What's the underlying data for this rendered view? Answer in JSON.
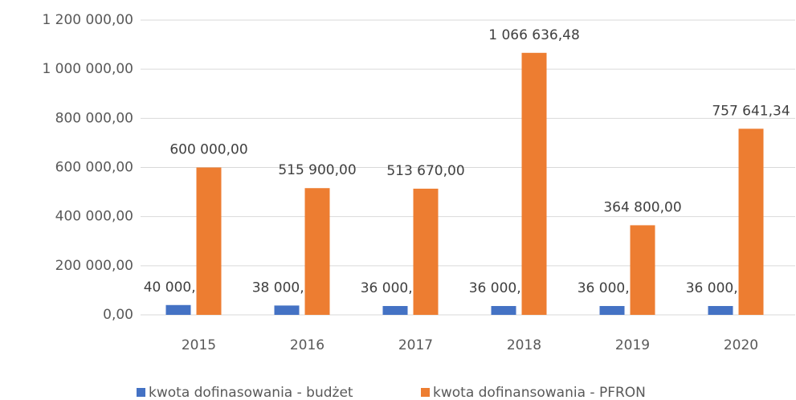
{
  "chart_data": {
    "type": "bar",
    "categories": [
      "2015",
      "2016",
      "2017",
      "2018",
      "2019",
      "2020"
    ],
    "series": [
      {
        "name": "kwota dofinasowania - budżet",
        "color": "#4472c4",
        "values": [
          40000,
          38000,
          36000,
          36000,
          36000,
          36000
        ],
        "value_labels": [
          "40 000,00",
          "38 000,00",
          "36 000,00",
          "36 000,00",
          "36 000,00",
          "36 000,00"
        ]
      },
      {
        "name": "kwota dofinansowania - PFRON",
        "color": "#ed7d31",
        "values": [
          600000,
          515900,
          513670,
          1066636.48,
          364800,
          757641.34
        ],
        "value_labels": [
          "600 000,00",
          "515 900,00",
          "513 670,00",
          "1 066 636,48",
          "364 800,00",
          "757 641,34"
        ]
      }
    ],
    "ylim": [
      0,
      1200000
    ],
    "yticks": [
      {
        "value": 0,
        "label": "0,00"
      },
      {
        "value": 200000,
        "label": "200 000,00"
      },
      {
        "value": 400000,
        "label": "400 000,00"
      },
      {
        "value": 600000,
        "label": "600 000,00"
      },
      {
        "value": 800000,
        "label": "800 000,00"
      },
      {
        "value": 1000000,
        "label": "1 000 000,00"
      },
      {
        "value": 1200000,
        "label": "1 200 000,00"
      }
    ],
    "grid": true,
    "legend": "bottom"
  }
}
